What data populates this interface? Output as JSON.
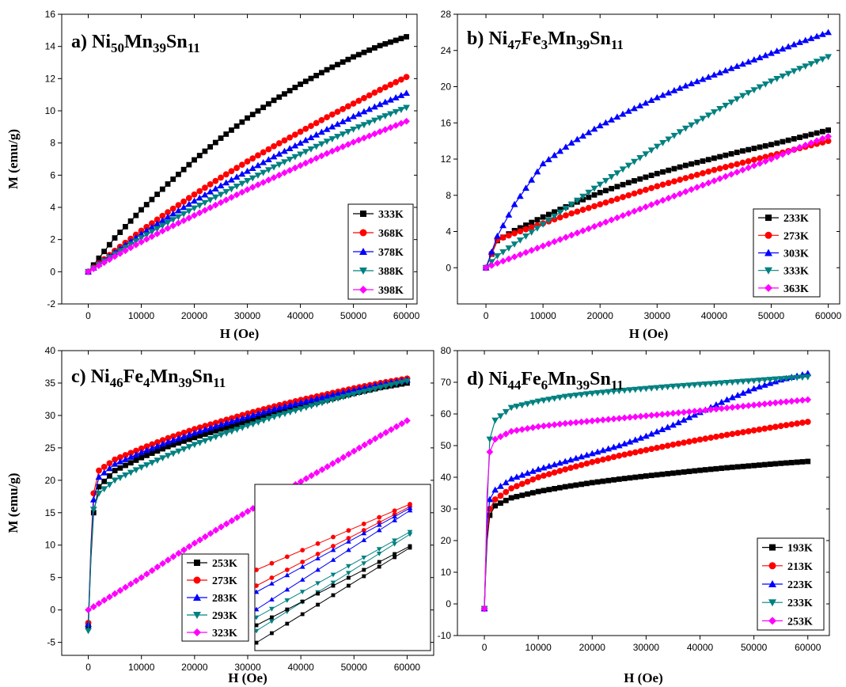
{
  "chart_data": [
    {
      "type": "line",
      "panel_letter": "a)",
      "title_parts": [
        [
          "Ni",
          ""
        ],
        [
          "50",
          "sub"
        ],
        [
          "Mn",
          ""
        ],
        [
          "39",
          "sub"
        ],
        [
          "Sn",
          ""
        ],
        [
          "11",
          "sub"
        ]
      ],
      "xlabel": "H (Oe)",
      "ylabel": "M (emu/g)",
      "xlim": [
        -5000,
        62000
      ],
      "ylim": [
        -2,
        16
      ],
      "xticks": [
        0,
        10000,
        20000,
        30000,
        40000,
        50000,
        60000
      ],
      "yticks": [
        -2,
        0,
        2,
        4,
        6,
        8,
        10,
        12,
        14,
        16
      ],
      "x": [
        0,
        5000,
        10000,
        15000,
        20000,
        25000,
        30000,
        35000,
        40000,
        45000,
        50000,
        55000,
        60000
      ],
      "series": [
        {
          "name": "333K",
          "color": "#000000",
          "marker": "square",
          "values": [
            0,
            2.1,
            3.85,
            5.45,
            6.95,
            8.3,
            9.55,
            10.65,
            11.65,
            12.55,
            13.35,
            14.05,
            14.6
          ]
        },
        {
          "name": "368K",
          "color": "#ff0000",
          "marker": "circle",
          "values": [
            0,
            1.3,
            2.55,
            3.7,
            4.8,
            5.85,
            6.85,
            7.8,
            8.7,
            9.6,
            10.45,
            11.3,
            12.1
          ]
        },
        {
          "name": "378K",
          "color": "#0000ff",
          "marker": "triangle",
          "values": [
            0,
            1.2,
            2.35,
            3.4,
            4.4,
            5.35,
            6.25,
            7.15,
            8.0,
            8.85,
            9.65,
            10.4,
            11.1
          ]
        },
        {
          "name": "388K",
          "color": "#008080",
          "marker": "triangle-down",
          "values": [
            0,
            1.1,
            2.1,
            3.05,
            3.95,
            4.8,
            5.65,
            6.5,
            7.3,
            8.1,
            8.85,
            9.55,
            10.2
          ]
        },
        {
          "name": "398K",
          "color": "#ff00ff",
          "marker": "diamond",
          "values": [
            0,
            0.95,
            1.85,
            2.7,
            3.5,
            4.3,
            5.1,
            5.85,
            6.6,
            7.35,
            8.05,
            8.7,
            9.35
          ]
        }
      ],
      "legend": "lower-right"
    },
    {
      "type": "line",
      "panel_letter": "b)",
      "title_parts": [
        [
          "Ni",
          ""
        ],
        [
          "47",
          "sub"
        ],
        [
          "Fe",
          ""
        ],
        [
          "3",
          "sub"
        ],
        [
          "Mn",
          ""
        ],
        [
          "39",
          "sub"
        ],
        [
          "Sn",
          ""
        ],
        [
          "11",
          "sub"
        ]
      ],
      "xlabel": "H (Oe)",
      "ylabel": "",
      "xlim": [
        -5000,
        62000
      ],
      "ylim": [
        -4,
        28
      ],
      "xticks": [
        0,
        10000,
        20000,
        30000,
        40000,
        50000,
        60000
      ],
      "yticks": [
        0,
        4,
        8,
        12,
        16,
        20,
        24,
        28
      ],
      "x": [
        0,
        2000,
        5000,
        10000,
        15000,
        20000,
        25000,
        30000,
        35000,
        40000,
        45000,
        50000,
        55000,
        60000
      ],
      "series": [
        {
          "name": "233K",
          "color": "#000000",
          "marker": "square",
          "values": [
            0,
            3.0,
            4.1,
            5.6,
            7.0,
            8.3,
            9.4,
            10.4,
            11.3,
            12.1,
            12.9,
            13.6,
            14.4,
            15.2
          ]
        },
        {
          "name": "273K",
          "color": "#ff0000",
          "marker": "circle",
          "values": [
            0,
            3.1,
            3.8,
            4.9,
            6.0,
            7.0,
            8.0,
            9.0,
            9.9,
            10.8,
            11.6,
            12.4,
            13.2,
            14.0
          ]
        },
        {
          "name": "303K",
          "color": "#0000ff",
          "marker": "triangle",
          "values": [
            0,
            3.5,
            7.0,
            11.5,
            13.8,
            15.7,
            17.3,
            18.8,
            20.1,
            21.3,
            22.5,
            23.7,
            24.9,
            26.0
          ]
        },
        {
          "name": "333K",
          "color": "#008080",
          "marker": "triangle-down",
          "values": [
            0,
            1.3,
            2.6,
            4.8,
            7.0,
            9.2,
            11.3,
            13.4,
            15.4,
            17.2,
            19.0,
            20.6,
            22.0,
            23.3
          ]
        },
        {
          "name": "363K",
          "color": "#ff00ff",
          "marker": "diamond",
          "values": [
            0,
            0.5,
            1.2,
            2.4,
            3.6,
            4.8,
            6.0,
            7.2,
            8.4,
            9.6,
            10.8,
            12.0,
            13.3,
            14.5
          ]
        }
      ],
      "legend": "lower-right"
    },
    {
      "type": "line",
      "panel_letter": "c)",
      "title_parts": [
        [
          "Ni",
          ""
        ],
        [
          "46",
          "sub"
        ],
        [
          "Fe",
          ""
        ],
        [
          "4",
          "sub"
        ],
        [
          "Mn",
          ""
        ],
        [
          "39",
          "sub"
        ],
        [
          "Sn",
          ""
        ],
        [
          "11",
          "sub"
        ]
      ],
      "xlabel": "H (Oe)",
      "ylabel": "M (emu/g)",
      "xlim": [
        -5000,
        65000
      ],
      "ylim": [
        -7,
        40
      ],
      "xticks": [
        0,
        10000,
        20000,
        30000,
        40000,
        50000,
        60000
      ],
      "yticks": [
        -5,
        0,
        5,
        10,
        15,
        20,
        25,
        30,
        35,
        40
      ],
      "x": [
        0,
        500,
        1000,
        2000,
        5000,
        10000,
        15000,
        20000,
        25000,
        30000,
        35000,
        40000,
        45000,
        50000,
        55000,
        60000
      ],
      "series": [
        {
          "name": "253K",
          "color": "#000000",
          "marker": "square",
          "values": [
            -2.5,
            8,
            15,
            19,
            21.5,
            23.5,
            25.2,
            26.6,
            27.9,
            29.1,
            30.3,
            31.4,
            32.4,
            33.4,
            34.3,
            35.0
          ]
        },
        {
          "name": "273K",
          "color": "#ff0000",
          "marker": "circle",
          "values": [
            -2.0,
            10,
            18,
            21.5,
            23.2,
            24.9,
            26.5,
            27.9,
            29.1,
            30.3,
            31.4,
            32.4,
            33.3,
            34.2,
            35.0,
            35.7
          ]
        },
        {
          "name": "283K",
          "color": "#0000ff",
          "marker": "triangle",
          "values": [
            -2.2,
            9.5,
            17,
            20.5,
            22.5,
            24.3,
            25.9,
            27.3,
            28.6,
            29.8,
            31.0,
            32.0,
            33.0,
            33.9,
            34.8,
            35.5
          ]
        },
        {
          "name": "293K",
          "color": "#008080",
          "marker": "triangle-down",
          "values": [
            -3.2,
            9,
            15.5,
            18,
            20,
            22,
            23.8,
            25.5,
            27.0,
            28.4,
            29.8,
            31.0,
            32.2,
            33.3,
            34.3,
            35.3
          ]
        },
        {
          "name": "323K",
          "color": "#ff00ff",
          "marker": "diamond",
          "values": [
            0,
            0.25,
            0.5,
            1.0,
            2.5,
            5.0,
            7.7,
            10.3,
            12.8,
            15.2,
            17.5,
            19.8,
            22.1,
            24.5,
            26.9,
            29.2
          ]
        }
      ],
      "legend": "lower-left",
      "inset": {
        "note": "zoomed high-field region"
      }
    },
    {
      "type": "line",
      "panel_letter": "d)",
      "title_parts": [
        [
          "Ni",
          ""
        ],
        [
          "44",
          "sub"
        ],
        [
          "Fe",
          ""
        ],
        [
          "6",
          "sub"
        ],
        [
          "Mn",
          ""
        ],
        [
          "39",
          "sub"
        ],
        [
          "Sn",
          ""
        ],
        [
          "11",
          "sub"
        ]
      ],
      "xlabel": "H (Oe)",
      "ylabel": "",
      "xlim": [
        -5000,
        64000
      ],
      "ylim": [
        -10,
        80
      ],
      "xticks": [
        0,
        10000,
        20000,
        30000,
        40000,
        50000,
        60000
      ],
      "yticks": [
        -10,
        0,
        10,
        20,
        30,
        40,
        50,
        60,
        70,
        80
      ],
      "x": [
        0,
        200,
        500,
        1000,
        2000,
        5000,
        10000,
        15000,
        20000,
        25000,
        30000,
        35000,
        40000,
        45000,
        50000,
        55000,
        60000
      ],
      "series": [
        {
          "name": "193K",
          "color": "#000000",
          "marker": "square",
          "values": [
            -1.5,
            8,
            20,
            28,
            31,
            33.5,
            35.5,
            37,
            38.3,
            39.4,
            40.4,
            41.3,
            42.2,
            43.0,
            43.7,
            44.4,
            45.0
          ]
        },
        {
          "name": "213K",
          "color": "#ff0000",
          "marker": "circle",
          "values": [
            -1.5,
            12,
            22,
            30,
            33,
            36.5,
            40,
            42.5,
            44.8,
            46.8,
            48.6,
            50.3,
            51.9,
            53.4,
            54.8,
            56.2,
            57.5
          ]
        },
        {
          "name": "223K",
          "color": "#0000ff",
          "marker": "triangle",
          "values": [
            -1.5,
            10,
            25,
            33,
            36,
            39.5,
            42.5,
            45,
            47.5,
            50,
            53,
            56.5,
            60.5,
            64.5,
            68,
            70.8,
            72.8
          ]
        },
        {
          "name": "233K",
          "color": "#008080",
          "marker": "triangle-down",
          "values": [
            -1.5,
            9,
            30,
            52,
            58,
            62,
            64,
            65.5,
            66.5,
            67.3,
            68,
            68.7,
            69.3,
            69.9,
            70.5,
            71.1,
            71.7
          ]
        },
        {
          "name": "253K",
          "color": "#ff00ff",
          "marker": "diamond",
          "values": [
            -1.5,
            10,
            35,
            48,
            52,
            54.5,
            56,
            57,
            57.8,
            58.6,
            59.4,
            60.2,
            61,
            61.9,
            62.8,
            63.7,
            64.5
          ]
        }
      ],
      "legend": "lower-right"
    }
  ]
}
